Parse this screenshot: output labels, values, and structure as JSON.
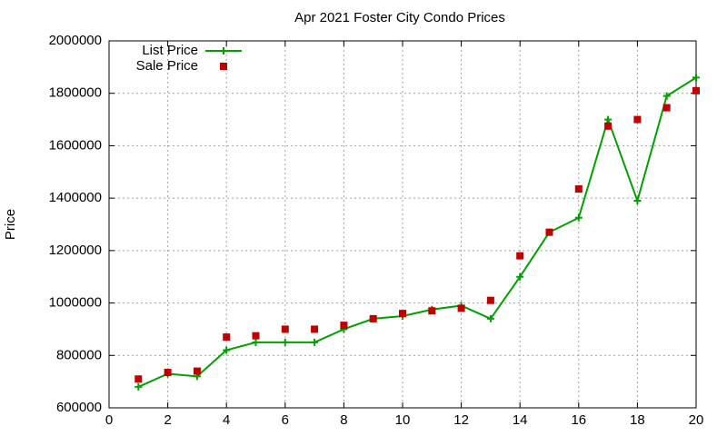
{
  "chart_data": {
    "type": "line",
    "title": "Apr 2021 Foster City Condo Prices",
    "y_label": "Price",
    "x": [
      1,
      2,
      3,
      4,
      5,
      6,
      7,
      8,
      9,
      10,
      11,
      12,
      13,
      14,
      15,
      16,
      17,
      18,
      19,
      20
    ],
    "series": [
      {
        "name": "List Price",
        "color": "#00a000",
        "style": "linespoints",
        "values": [
          680000,
          730000,
          720000,
          820000,
          850000,
          850000,
          850000,
          900000,
          940000,
          950000,
          975000,
          990000,
          940000,
          1100000,
          1270000,
          1325000,
          1700000,
          1390000,
          1790000,
          1860000
        ]
      },
      {
        "name": "Sale Price",
        "color": "#c00000",
        "style": "points",
        "values": [
          710000,
          735000,
          740000,
          870000,
          875000,
          900000,
          900000,
          915000,
          940000,
          960000,
          970000,
          980000,
          1010000,
          1180000,
          1270000,
          1435000,
          1675000,
          1700000,
          1745000,
          1810000
        ]
      }
    ],
    "xlim": [
      0,
      20
    ],
    "xticks": [
      0,
      2,
      4,
      6,
      8,
      10,
      12,
      14,
      16,
      18,
      20
    ],
    "ylim": [
      600000,
      2000000
    ],
    "yticks": [
      600000,
      800000,
      1000000,
      1200000,
      1400000,
      1600000,
      1800000,
      2000000
    ],
    "grid": true,
    "legend": "top-left"
  }
}
